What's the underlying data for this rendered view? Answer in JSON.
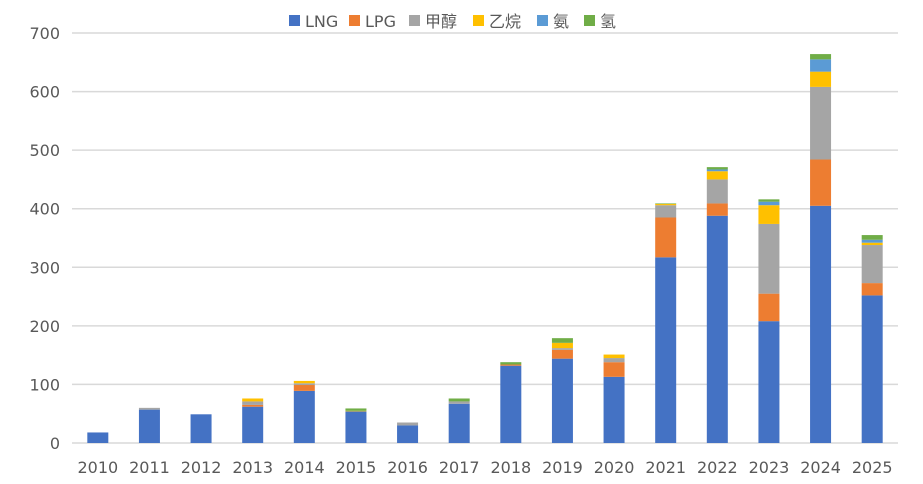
{
  "chart_data": {
    "type": "bar",
    "stacked": true,
    "title": "",
    "xlabel": "",
    "ylabel": "",
    "ylim": [
      0,
      700
    ],
    "yticks": [
      0,
      100,
      200,
      300,
      400,
      500,
      600,
      700
    ],
    "grid": true,
    "legend_position": "top",
    "categories": [
      "2010",
      "2011",
      "2012",
      "2013",
      "2014",
      "2015",
      "2016",
      "2017",
      "2018",
      "2019",
      "2020",
      "2021",
      "2022",
      "2023",
      "2024",
      "2025"
    ],
    "series": [
      {
        "name": "LNG",
        "color": "#4472C4",
        "values": [
          18,
          57,
          49,
          62,
          89,
          54,
          30,
          67,
          132,
          144,
          113,
          317,
          388,
          208,
          405,
          252
        ]
      },
      {
        "name": "LPG",
        "color": "#ED7D31",
        "values": [
          0,
          0,
          0,
          3,
          10,
          0,
          0,
          0,
          2,
          15,
          25,
          68,
          21,
          47,
          79,
          21
        ]
      },
      {
        "name": "甲醇",
        "color": "#A5A5A5",
        "values": [
          0,
          3,
          0,
          6,
          3,
          0,
          5,
          4,
          0,
          3,
          7,
          21,
          41,
          119,
          124,
          65
        ]
      },
      {
        "name": "乙烷",
        "color": "#FFC000",
        "values": [
          0,
          0,
          0,
          5,
          4,
          1,
          0,
          0,
          0,
          9,
          6,
          2,
          14,
          32,
          26,
          4
        ]
      },
      {
        "name": "氨",
        "color": "#5B9BD5",
        "values": [
          0,
          0,
          0,
          0,
          0,
          0,
          0,
          0,
          0,
          0,
          0,
          0,
          3,
          6,
          21,
          5
        ]
      },
      {
        "name": "氢",
        "color": "#70AD47",
        "values": [
          0,
          0,
          0,
          0,
          0,
          4,
          0,
          5,
          4,
          8,
          0,
          1,
          4,
          4,
          9,
          8
        ]
      }
    ]
  }
}
